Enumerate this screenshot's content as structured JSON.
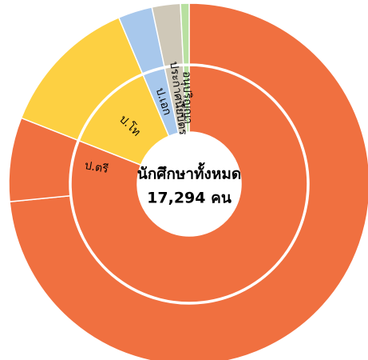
{
  "chart_data": {
    "type": "sunburst",
    "center_title": "นักศึกษาทั้งหมด",
    "center_subtitle": "17,294 คน",
    "categories": [
      "ป.ตรี",
      "ป.โท",
      "ป.เอก",
      "ประกาศนียบัตร",
      "อนุปริญญา"
    ],
    "values": [
      14000,
      2190,
      530,
      440,
      134
    ],
    "children": [
      [
        12700,
        1300
      ],
      [
        2190
      ],
      [
        530
      ],
      [
        440
      ],
      [
        134
      ]
    ],
    "colors": [
      "#f07040",
      "#fdd042",
      "#a8c8ec",
      "#cfc8b8",
      "#b8e0a0"
    ]
  }
}
